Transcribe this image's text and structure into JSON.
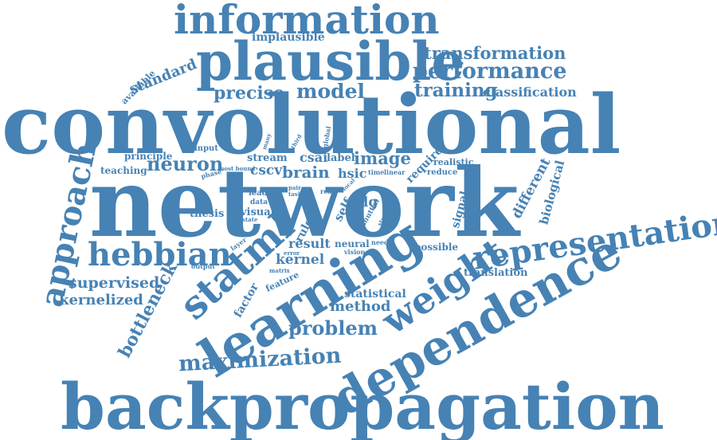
{
  "color": "#4682b4",
  "words": [
    {
      "text": "convolutional"
    },
    {
      "text": "network"
    },
    {
      "text": "backpropagation"
    },
    {
      "text": "plausible"
    },
    {
      "text": "information"
    },
    {
      "text": "dependence"
    },
    {
      "text": "learning"
    },
    {
      "text": "representation"
    },
    {
      "text": "statml"
    },
    {
      "text": "weight"
    },
    {
      "text": "approach"
    },
    {
      "text": "hebbian"
    },
    {
      "text": "performance"
    },
    {
      "text": "transformation"
    },
    {
      "text": "training"
    },
    {
      "text": "classification"
    },
    {
      "text": "model"
    },
    {
      "text": "precise"
    },
    {
      "text": "standard"
    },
    {
      "text": "implausible"
    },
    {
      "text": "available"
    },
    {
      "text": "neuron"
    },
    {
      "text": "image"
    },
    {
      "text": "brain"
    },
    {
      "text": "hsic"
    },
    {
      "text": "cscv"
    },
    {
      "text": "stream"
    },
    {
      "text": "csai"
    },
    {
      "text": "label"
    },
    {
      "text": "principle"
    },
    {
      "text": "teaching"
    },
    {
      "text": "input"
    },
    {
      "text": "most bound"
    },
    {
      "text": "phase"
    },
    {
      "text": "many"
    },
    {
      "text": "third"
    },
    {
      "text": "global"
    },
    {
      "text": "require"
    },
    {
      "text": "realistic"
    },
    {
      "text": "reduce"
    },
    {
      "text": "linear"
    },
    {
      "text": "time"
    },
    {
      "text": "local"
    },
    {
      "text": "pair"
    },
    {
      "text": "task"
    },
    {
      "text": "real"
    },
    {
      "text": "lead"
    },
    {
      "text": "data"
    },
    {
      "text": "state"
    },
    {
      "text": "visual"
    },
    {
      "text": "thesis"
    },
    {
      "text": "cslg"
    },
    {
      "text": "self"
    },
    {
      "text": "rule"
    },
    {
      "text": "mutual"
    },
    {
      "text": "study"
    },
    {
      "text": "signal"
    },
    {
      "text": "different"
    },
    {
      "text": "biological"
    },
    {
      "text": "result"
    },
    {
      "text": "neural"
    },
    {
      "text": "need"
    },
    {
      "text": "vision"
    },
    {
      "text": "error"
    },
    {
      "text": "kernel"
    },
    {
      "text": "matrix"
    },
    {
      "text": "layer"
    },
    {
      "text": "output"
    },
    {
      "text": "feature"
    },
    {
      "text": "factor"
    },
    {
      "text": "possible"
    },
    {
      "text": "translation"
    },
    {
      "text": "supervised"
    },
    {
      "text": "kernelized"
    },
    {
      "text": "bottleneck"
    },
    {
      "text": "statistical"
    },
    {
      "text": "method"
    },
    {
      "text": "problem"
    },
    {
      "text": "maximization"
    }
  ]
}
